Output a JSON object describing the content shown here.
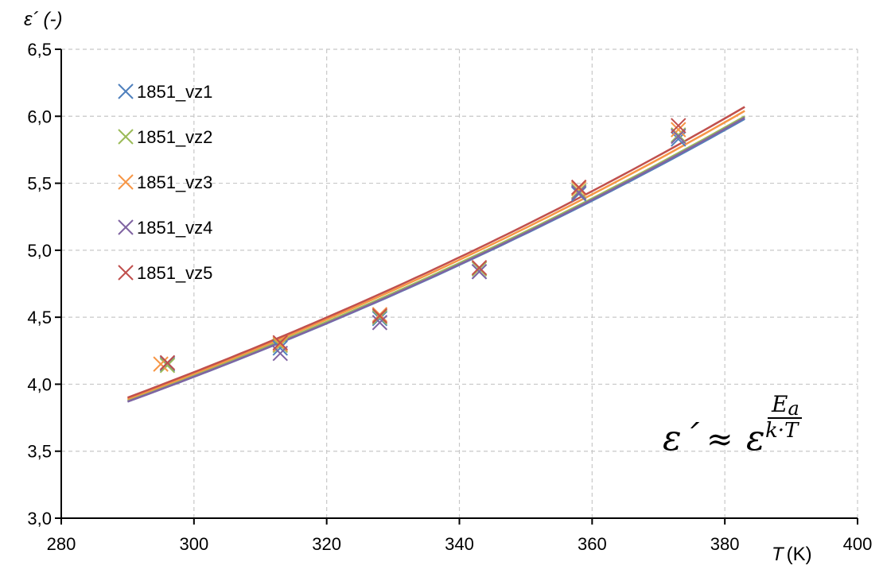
{
  "chart_data": {
    "type": "scatter",
    "ylabel_symbol": "ε´",
    "ylabel_unit": "(-)",
    "xlabel_symbol": "T",
    "xlabel_unit": "(K)",
    "xlim": [
      280,
      400
    ],
    "ylim": [
      3.0,
      6.5
    ],
    "x_ticks": [
      280,
      300,
      320,
      340,
      360,
      380,
      400
    ],
    "x_tick_labels": [
      "280",
      "300",
      "320",
      "340",
      "360",
      "380",
      "400"
    ],
    "y_ticks": [
      3.0,
      3.5,
      4.0,
      4.5,
      5.0,
      5.5,
      6.0,
      6.5
    ],
    "y_tick_labels": [
      "3,0",
      "3,5",
      "4,0",
      "4,5",
      "5,0",
      "5,5",
      "6,0",
      "6,5"
    ],
    "grid": true,
    "legend_position": "top-left",
    "formula": {
      "lhs": "ε´",
      "approx": "≈",
      "base": "ε",
      "exp_numerator": "E",
      "exp_numerator_sub": "a",
      "exp_denominator": "k·T"
    },
    "series": [
      {
        "name": "1851_vz1",
        "color": "#4F81BD",
        "x": [
          296,
          313,
          328,
          343,
          358,
          373
        ],
        "y": [
          4.15,
          4.27,
          4.49,
          4.84,
          5.42,
          5.83
        ],
        "fit": {
          "x": [
            290,
            383
          ],
          "y": [
            3.87,
            5.98
          ]
        }
      },
      {
        "name": "1851_vz2",
        "color": "#9BBB59",
        "x": [
          296,
          313,
          328,
          343,
          358,
          373
        ],
        "y": [
          4.14,
          4.29,
          4.5,
          4.86,
          5.44,
          5.86
        ],
        "fit": {
          "x": [
            290,
            383
          ],
          "y": [
            3.88,
            6.0
          ]
        }
      },
      {
        "name": "1851_vz3",
        "color": "#F79646",
        "x": [
          295,
          313,
          328,
          343,
          358,
          373
        ],
        "y": [
          4.15,
          4.3,
          4.52,
          4.87,
          5.46,
          5.9
        ],
        "fit": {
          "x": [
            290,
            383
          ],
          "y": [
            3.89,
            6.04
          ]
        }
      },
      {
        "name": "1851_vz4",
        "color": "#8064A2",
        "x": [
          296,
          313,
          328,
          343,
          358,
          373
        ],
        "y": [
          4.16,
          4.23,
          4.46,
          4.84,
          5.43,
          5.85
        ],
        "fit": {
          "x": [
            290,
            383
          ],
          "y": [
            3.87,
            5.99
          ]
        }
      },
      {
        "name": "1851_vz5",
        "color": "#C0504D",
        "x": [
          296,
          313,
          328,
          343,
          358,
          373
        ],
        "y": [
          4.16,
          4.31,
          4.51,
          4.87,
          5.47,
          5.93
        ],
        "fit": {
          "x": [
            290,
            383
          ],
          "y": [
            3.9,
            6.07
          ]
        }
      }
    ]
  }
}
